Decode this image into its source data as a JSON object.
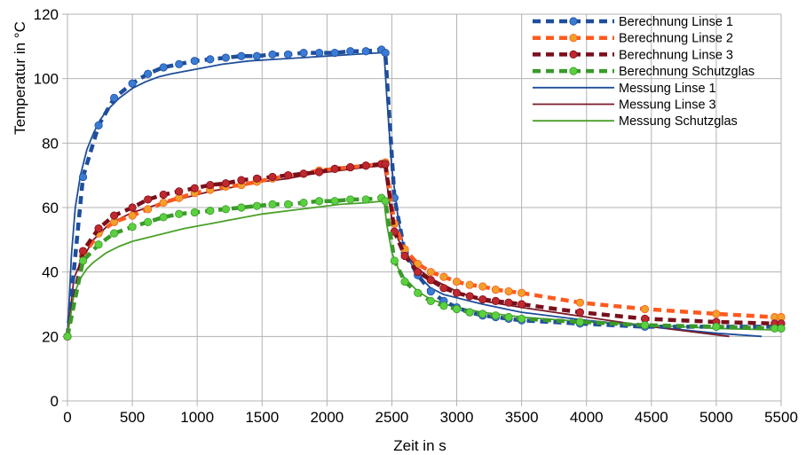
{
  "chart_data": {
    "type": "line",
    "title": "",
    "xlabel": "Zeit in s",
    "ylabel": "Temperatur in °C",
    "xlim": [
      0,
      5500
    ],
    "ylim": [
      0,
      120
    ],
    "xticks": [
      0,
      500,
      1000,
      1500,
      2000,
      2500,
      3000,
      3500,
      4000,
      4500,
      5000,
      5500
    ],
    "yticks": [
      0,
      20,
      40,
      60,
      80,
      100,
      120
    ],
    "grid": true,
    "legend_position": "top-right",
    "series": [
      {
        "name": "Berechnung Linse 1",
        "style": "dashed-marker",
        "color": "#1f4e9a",
        "markerColor": "#3a7bd5",
        "x": [
          0,
          120,
          240,
          360,
          500,
          620,
          740,
          860,
          980,
          1100,
          1220,
          1340,
          1460,
          1580,
          1700,
          1820,
          1940,
          2060,
          2180,
          2300,
          2420,
          2450,
          2520,
          2600,
          2700,
          2800,
          2900,
          3000,
          3100,
          3200,
          3300,
          3400,
          3500,
          3950,
          4450,
          5000,
          5450,
          5500
        ],
        "y": [
          20,
          69.5,
          85.5,
          94,
          98.5,
          101.5,
          103.5,
          104.5,
          105.5,
          106,
          106.5,
          107,
          107,
          107.5,
          107.5,
          108,
          108,
          108,
          108.5,
          108.5,
          109,
          108,
          63,
          46,
          39,
          34,
          31,
          29,
          27.5,
          26.5,
          26,
          25.5,
          25,
          24,
          23,
          23,
          23,
          22.5
        ]
      },
      {
        "name": "Berechnung Linse 2",
        "style": "dashed-marker",
        "color": "#ff5a1f",
        "markerColor": "#f0a02a",
        "x": [
          0,
          120,
          240,
          360,
          500,
          620,
          740,
          860,
          980,
          1100,
          1220,
          1340,
          1460,
          1580,
          1700,
          1820,
          1940,
          2060,
          2180,
          2300,
          2420,
          2450,
          2520,
          2600,
          2700,
          2800,
          2900,
          3000,
          3100,
          3200,
          3300,
          3400,
          3500,
          3950,
          4450,
          5000,
          5450,
          5500
        ],
        "y": [
          20,
          45,
          52,
          55.5,
          57.5,
          59.5,
          61.5,
          63,
          64.5,
          65.5,
          66.5,
          67,
          68,
          69,
          70,
          70.5,
          71.5,
          72,
          72.5,
          73,
          73.5,
          74,
          55,
          47,
          42.5,
          40,
          38.5,
          37,
          36,
          35.5,
          34.5,
          34,
          33.5,
          30.5,
          28.5,
          27,
          26,
          26
        ]
      },
      {
        "name": "Berechnung Linse 3",
        "style": "dashed-marker",
        "color": "#7a0f1c",
        "markerColor": "#c0282e",
        "x": [
          0,
          120,
          240,
          360,
          500,
          620,
          740,
          860,
          980,
          1100,
          1220,
          1340,
          1460,
          1580,
          1700,
          1820,
          1940,
          2060,
          2180,
          2300,
          2420,
          2450,
          2520,
          2600,
          2700,
          2800,
          2900,
          3000,
          3100,
          3200,
          3300,
          3400,
          3500,
          3950,
          4450,
          5000,
          5450,
          5500
        ],
        "y": [
          20,
          46.5,
          53.5,
          57.5,
          60,
          62.5,
          64,
          65,
          66,
          67,
          67.5,
          68.5,
          69,
          69.5,
          70,
          70.5,
          71,
          72,
          72.5,
          73,
          73.5,
          73.5,
          52.5,
          45,
          40,
          37.5,
          35,
          33.5,
          32.5,
          31.5,
          31,
          30.5,
          30,
          27.5,
          25.5,
          24.5,
          24,
          24
        ]
      },
      {
        "name": "Berechnung Schutzglas",
        "style": "dashed-marker",
        "color": "#3a9a2a",
        "markerColor": "#5bd140",
        "x": [
          0,
          120,
          240,
          360,
          500,
          620,
          740,
          860,
          980,
          1100,
          1220,
          1340,
          1460,
          1580,
          1700,
          1820,
          1940,
          2060,
          2180,
          2300,
          2420,
          2450,
          2520,
          2600,
          2700,
          2800,
          2900,
          3000,
          3100,
          3200,
          3300,
          3400,
          3500,
          3950,
          4450,
          5000,
          5450,
          5500
        ],
        "y": [
          20,
          43.5,
          48.5,
          52,
          54,
          55.5,
          57,
          58,
          58.5,
          59,
          59.5,
          60,
          60.5,
          61,
          61,
          61.5,
          62,
          62,
          62.5,
          62.5,
          63,
          62,
          43.5,
          37,
          33.5,
          31,
          29.5,
          28.5,
          27.5,
          27,
          26.5,
          26,
          25.5,
          24.5,
          23.5,
          23,
          22.5,
          22.5
        ]
      },
      {
        "name": "Messung Linse 1",
        "style": "solid",
        "color": "#1f4e9a",
        "x": [
          0,
          30,
          60,
          100,
          150,
          200,
          250,
          300,
          400,
          500,
          600,
          700,
          800,
          1000,
          1200,
          1400,
          1600,
          1800,
          2000,
          2200,
          2400,
          2440,
          2460,
          2500,
          2550,
          2600,
          2700,
          2800,
          2900,
          3000,
          3200,
          3500,
          4000,
          4500,
          5000,
          5350
        ],
        "y": [
          20,
          45,
          60,
          70,
          78,
          83,
          87,
          90,
          94,
          97,
          99,
          100.5,
          101.5,
          103,
          104.5,
          105.5,
          106,
          106.5,
          107,
          107.5,
          108,
          108,
          95,
          72,
          56,
          46,
          39,
          35,
          33,
          32,
          30,
          27.5,
          25,
          23,
          21,
          20
        ]
      },
      {
        "name": "Messung Linse 3",
        "style": "solid",
        "color": "#7a1a2a",
        "x": [
          0,
          50,
          100,
          200,
          300,
          400,
          500,
          700,
          900,
          1100,
          1300,
          1500,
          1700,
          1900,
          2100,
          2300,
          2440,
          2460,
          2500,
          2550,
          2600,
          2700,
          2800,
          2900,
          3000,
          3200,
          3500,
          4000,
          4500,
          5100
        ],
        "y": [
          20,
          38,
          43,
          50,
          54,
          56.5,
          58.5,
          61,
          63,
          65,
          66.5,
          68,
          69,
          70.5,
          71.5,
          72.5,
          73,
          68,
          56,
          50,
          46,
          41,
          38,
          36,
          34,
          31,
          29,
          26,
          23,
          20
        ]
      },
      {
        "name": "Messung Schutzglas",
        "style": "solid",
        "color": "#4aa12a",
        "x": [
          0,
          50,
          100,
          150,
          200,
          300,
          400,
          500,
          700,
          900,
          1100,
          1300,
          1500,
          1700,
          1900,
          2100,
          2300,
          2440,
          2460,
          2500,
          2550,
          2600,
          2700,
          2800,
          3000,
          3200,
          3500,
          4000,
          4500,
          5000,
          5500
        ],
        "y": [
          20,
          33,
          38,
          41,
          43,
          46,
          48,
          49.5,
          51.5,
          53.5,
          55,
          56.5,
          58,
          59,
          60,
          61,
          61.5,
          62,
          55,
          46,
          41,
          38,
          34,
          31.5,
          29,
          27.5,
          26,
          24.5,
          23.5,
          22.5,
          22
        ]
      }
    ]
  }
}
